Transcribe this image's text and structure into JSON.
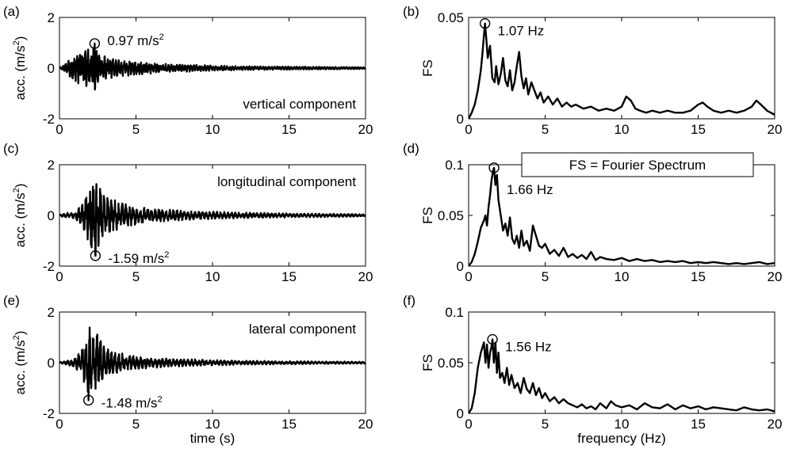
{
  "note_box": "FS = Fourier Spectrum",
  "chart_data": [
    {
      "panel_id": "a",
      "type": "line",
      "title": "",
      "xlabel": "",
      "ylabel_parts": [
        "acc. (m/s",
        "2",
        ")"
      ],
      "xlim": [
        0,
        20
      ],
      "ylim": [
        -2,
        2
      ],
      "xticks": [
        "0",
        "5",
        "10",
        "15",
        "20"
      ],
      "yticks": [
        "-2",
        "0",
        "2"
      ],
      "grid": false,
      "component_label": "vertical component",
      "peak": {
        "x": 2.3,
        "y": 0.97,
        "label_parts": [
          "0.97 m/s",
          "2",
          ""
        ]
      },
      "series": [
        {
          "envelope": [
            [
              0.0,
              0.02
            ],
            [
              0.3,
              0.15
            ],
            [
              0.7,
              0.4
            ],
            [
              1.2,
              0.6
            ],
            [
              1.6,
              0.72
            ],
            [
              2.0,
              0.85
            ],
            [
              2.3,
              0.97
            ],
            [
              2.7,
              0.55
            ],
            [
              3.3,
              0.42
            ],
            [
              4.0,
              0.33
            ],
            [
              5.0,
              0.27
            ],
            [
              6.0,
              0.22
            ],
            [
              7.0,
              0.18
            ],
            [
              8.0,
              0.15
            ],
            [
              10.0,
              0.11
            ],
            [
              12.0,
              0.08
            ],
            [
              14.0,
              0.07
            ],
            [
              16.0,
              0.06
            ],
            [
              18.0,
              0.05
            ],
            [
              20.0,
              0.04
            ]
          ]
        }
      ]
    },
    {
      "panel_id": "b",
      "type": "line",
      "title": "",
      "xlabel": "",
      "ylabel": "FS",
      "xlim": [
        0,
        20
      ],
      "ylim": [
        0,
        0.05
      ],
      "xticks": [
        "0",
        "5",
        "10",
        "15",
        "20"
      ],
      "yticks": [
        "0",
        "0.05"
      ],
      "grid": false,
      "peak": {
        "x": 1.07,
        "y": 0.047,
        "label": "1.07 Hz"
      },
      "series": [
        {
          "x": [
            0.2,
            0.4,
            0.6,
            0.8,
            0.9,
            1.0,
            1.07,
            1.15,
            1.25,
            1.4,
            1.55,
            1.7,
            1.8,
            1.95,
            2.1,
            2.25,
            2.4,
            2.55,
            2.7,
            2.85,
            3.0,
            3.15,
            3.3,
            3.45,
            3.6,
            3.75,
            3.9,
            4.1,
            4.3,
            4.5,
            4.7,
            4.9,
            5.2,
            5.5,
            5.8,
            6.1,
            6.4,
            6.7,
            7.0,
            7.5,
            8.0,
            8.5,
            9.0,
            9.5,
            10.0,
            10.3,
            10.6,
            10.9,
            11.2,
            11.6,
            12.0,
            12.5,
            13.0,
            13.5,
            14.0,
            14.5,
            15.0,
            15.3,
            15.6,
            16.0,
            16.5,
            17.0,
            17.5,
            18.0,
            18.5,
            18.8,
            19.1,
            19.5,
            20.0
          ],
          "y": [
            0.003,
            0.007,
            0.014,
            0.024,
            0.032,
            0.041,
            0.047,
            0.04,
            0.03,
            0.036,
            0.02,
            0.018,
            0.026,
            0.017,
            0.022,
            0.03,
            0.019,
            0.016,
            0.024,
            0.014,
            0.018,
            0.026,
            0.033,
            0.021,
            0.015,
            0.02,
            0.012,
            0.018,
            0.014,
            0.01,
            0.013,
            0.008,
            0.011,
            0.007,
            0.01,
            0.006,
            0.008,
            0.006,
            0.007,
            0.005,
            0.006,
            0.004,
            0.005,
            0.004,
            0.006,
            0.011,
            0.009,
            0.005,
            0.004,
            0.003,
            0.004,
            0.003,
            0.004,
            0.003,
            0.003,
            0.004,
            0.007,
            0.008,
            0.006,
            0.004,
            0.003,
            0.004,
            0.003,
            0.004,
            0.006,
            0.009,
            0.007,
            0.004,
            0.002
          ]
        }
      ]
    },
    {
      "panel_id": "c",
      "type": "line",
      "title": "",
      "xlabel": "",
      "ylabel_parts": [
        "acc. (m/s",
        "2",
        ")"
      ],
      "xlim": [
        0,
        20
      ],
      "ylim": [
        -2,
        2
      ],
      "xticks": [
        "0",
        "5",
        "10",
        "15",
        "20"
      ],
      "yticks": [
        "-2",
        "0",
        "2"
      ],
      "grid": false,
      "component_label": "longitudinal component",
      "peak": {
        "x": 2.35,
        "y": -1.59,
        "label_parts": [
          "-1.59 m/s",
          "2",
          ""
        ]
      },
      "series": [
        {
          "envelope": [
            [
              0.0,
              0.03
            ],
            [
              0.5,
              0.1
            ],
            [
              1.0,
              0.18
            ],
            [
              1.5,
              0.45
            ],
            [
              1.8,
              1.0
            ],
            [
              2.0,
              1.5
            ],
            [
              2.35,
              1.59
            ],
            [
              2.7,
              1.1
            ],
            [
              3.2,
              0.8
            ],
            [
              3.8,
              0.55
            ],
            [
              4.5,
              0.45
            ],
            [
              5.5,
              0.32
            ],
            [
              6.5,
              0.26
            ],
            [
              7.5,
              0.22
            ],
            [
              9.0,
              0.17
            ],
            [
              11.0,
              0.13
            ],
            [
              13.0,
              0.1
            ],
            [
              15.0,
              0.08
            ],
            [
              17.0,
              0.07
            ],
            [
              20.0,
              0.05
            ]
          ]
        }
      ]
    },
    {
      "panel_id": "d",
      "type": "line",
      "title": "",
      "xlabel": "",
      "ylabel": "FS",
      "xlim": [
        0,
        20
      ],
      "ylim": [
        0,
        0.1
      ],
      "xticks": [
        "0",
        "5",
        "10",
        "15",
        "20"
      ],
      "yticks": [
        "0",
        "0.05",
        "0.1"
      ],
      "grid": false,
      "peak": {
        "x": 1.66,
        "y": 0.097,
        "label": "1.66 Hz"
      },
      "series": [
        {
          "x": [
            0.2,
            0.4,
            0.6,
            0.8,
            1.0,
            1.1,
            1.2,
            1.3,
            1.4,
            1.5,
            1.6,
            1.66,
            1.75,
            1.85,
            1.95,
            2.1,
            2.25,
            2.4,
            2.55,
            2.7,
            2.85,
            3.0,
            3.15,
            3.3,
            3.45,
            3.6,
            3.8,
            4.0,
            4.2,
            4.4,
            4.6,
            4.8,
            5.0,
            5.3,
            5.6,
            5.9,
            6.2,
            6.5,
            6.8,
            7.1,
            7.4,
            7.7,
            8.0,
            8.3,
            8.6,
            9.0,
            9.5,
            10.0,
            10.5,
            11.0,
            11.5,
            12.0,
            12.5,
            13.0,
            13.5,
            14.0,
            14.5,
            15.0,
            15.5,
            16.0,
            16.5,
            17.0,
            17.5,
            18.0,
            18.5,
            19.0,
            19.5,
            20.0
          ],
          "y": [
            0.004,
            0.012,
            0.024,
            0.038,
            0.045,
            0.05,
            0.04,
            0.058,
            0.07,
            0.085,
            0.094,
            0.097,
            0.08,
            0.09,
            0.065,
            0.05,
            0.035,
            0.042,
            0.03,
            0.048,
            0.027,
            0.022,
            0.03,
            0.018,
            0.035,
            0.02,
            0.025,
            0.015,
            0.04,
            0.03,
            0.02,
            0.018,
            0.022,
            0.012,
            0.016,
            0.01,
            0.018,
            0.009,
            0.012,
            0.008,
            0.011,
            0.007,
            0.014,
            0.006,
            0.009,
            0.007,
            0.006,
            0.008,
            0.005,
            0.007,
            0.005,
            0.006,
            0.004,
            0.005,
            0.004,
            0.005,
            0.003,
            0.004,
            0.003,
            0.004,
            0.003,
            0.002,
            0.003,
            0.002,
            0.003,
            0.004,
            0.002,
            0.003
          ]
        }
      ]
    },
    {
      "panel_id": "e",
      "type": "line",
      "title": "",
      "xlabel": "time (s)",
      "ylabel_parts": [
        "acc. (m/s",
        "2",
        ")"
      ],
      "xlim": [
        0,
        20
      ],
      "ylim": [
        -2,
        2
      ],
      "xticks": [
        "0",
        "5",
        "10",
        "15",
        "20"
      ],
      "yticks": [
        "-2",
        "0",
        "2"
      ],
      "grid": false,
      "component_label": "lateral component",
      "peak": {
        "x": 1.9,
        "y": -1.48,
        "label_parts": [
          "-1.48 m/s",
          "2",
          ""
        ]
      },
      "series": [
        {
          "envelope": [
            [
              0.0,
              0.03
            ],
            [
              0.5,
              0.08
            ],
            [
              1.0,
              0.2
            ],
            [
              1.4,
              0.5
            ],
            [
              1.7,
              1.0
            ],
            [
              1.9,
              1.48
            ],
            [
              2.2,
              1.3
            ],
            [
              2.5,
              1.4
            ],
            [
              2.8,
              0.8
            ],
            [
              3.3,
              0.5
            ],
            [
              4.0,
              0.38
            ],
            [
              5.0,
              0.28
            ],
            [
              6.0,
              0.22
            ],
            [
              7.0,
              0.18
            ],
            [
              8.5,
              0.14
            ],
            [
              10.0,
              0.11
            ],
            [
              12.0,
              0.08
            ],
            [
              14.0,
              0.07
            ],
            [
              17.0,
              0.05
            ],
            [
              20.0,
              0.04
            ]
          ]
        }
      ]
    },
    {
      "panel_id": "f",
      "type": "line",
      "title": "",
      "xlabel": "frequency (Hz)",
      "ylabel": "FS",
      "xlim": [
        0,
        20
      ],
      "ylim": [
        0,
        0.1
      ],
      "xticks": [
        "0",
        "5",
        "10",
        "15",
        "20"
      ],
      "yticks": [
        "0",
        "0.05",
        "0.1"
      ],
      "grid": false,
      "peak": {
        "x": 1.56,
        "y": 0.073,
        "label": "1.56 Hz"
      },
      "series": [
        {
          "x": [
            0.2,
            0.4,
            0.6,
            0.8,
            1.0,
            1.1,
            1.2,
            1.3,
            1.4,
            1.5,
            1.56,
            1.65,
            1.75,
            1.85,
            1.95,
            2.05,
            2.2,
            2.35,
            2.5,
            2.65,
            2.8,
            3.0,
            3.2,
            3.4,
            3.6,
            3.8,
            4.0,
            4.2,
            4.4,
            4.6,
            4.8,
            5.0,
            5.3,
            5.6,
            5.9,
            6.2,
            6.5,
            6.8,
            7.1,
            7.4,
            7.7,
            8.0,
            8.3,
            8.6,
            9.0,
            9.3,
            9.6,
            10.0,
            10.5,
            11.0,
            11.5,
            12.0,
            12.5,
            13.0,
            13.5,
            14.0,
            14.5,
            15.0,
            15.5,
            16.0,
            16.5,
            17.0,
            17.5,
            18.0,
            18.5,
            19.0,
            19.5,
            20.0
          ],
          "y": [
            0.005,
            0.02,
            0.045,
            0.06,
            0.07,
            0.05,
            0.068,
            0.045,
            0.06,
            0.066,
            0.073,
            0.05,
            0.07,
            0.04,
            0.06,
            0.035,
            0.04,
            0.03,
            0.045,
            0.028,
            0.038,
            0.025,
            0.03,
            0.02,
            0.035,
            0.024,
            0.02,
            0.03,
            0.018,
            0.025,
            0.015,
            0.02,
            0.012,
            0.016,
            0.01,
            0.014,
            0.01,
            0.008,
            0.006,
            0.009,
            0.005,
            0.007,
            0.004,
            0.01,
            0.005,
            0.012,
            0.008,
            0.006,
            0.008,
            0.004,
            0.01,
            0.006,
            0.005,
            0.009,
            0.004,
            0.008,
            0.005,
            0.007,
            0.004,
            0.006,
            0.005,
            0.004,
            0.003,
            0.006,
            0.004,
            0.003,
            0.004,
            0.002
          ]
        }
      ]
    }
  ]
}
